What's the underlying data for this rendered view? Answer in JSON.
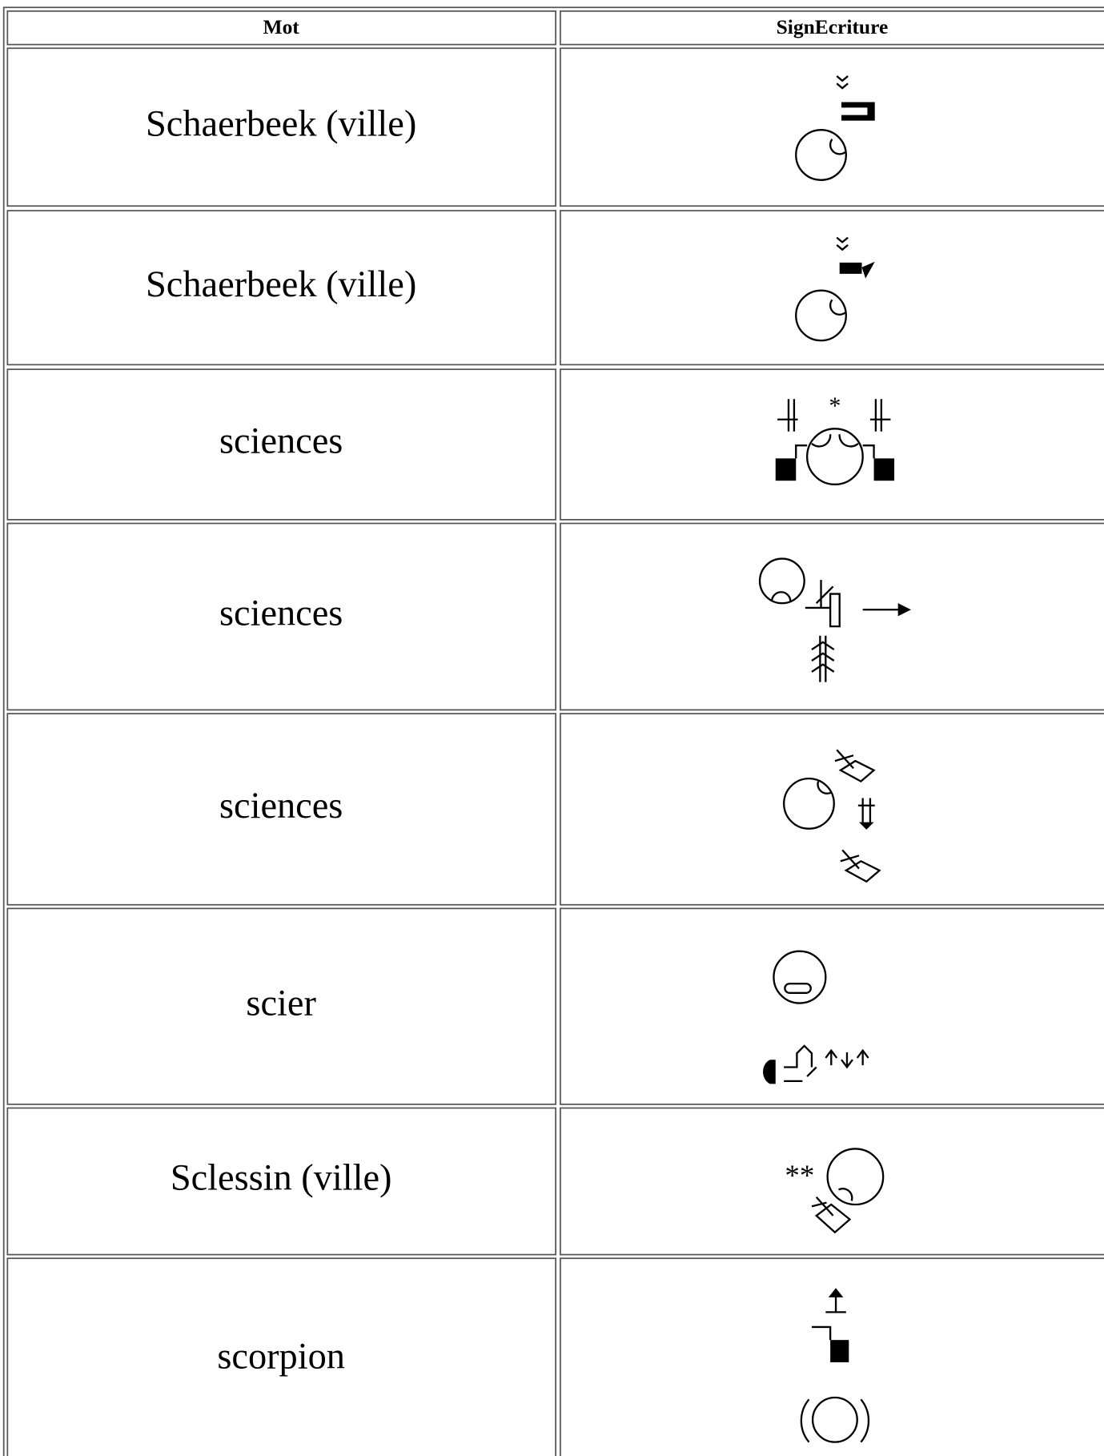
{
  "table": {
    "header": [
      "Mot",
      "SignEcriture"
    ],
    "rows": [
      "Schaerbeek (ville)",
      "Schaerbeek (ville)",
      "sciences",
      "sciences",
      "sciences",
      "scier",
      "Sclessin (ville)",
      "scorpion"
    ]
  }
}
